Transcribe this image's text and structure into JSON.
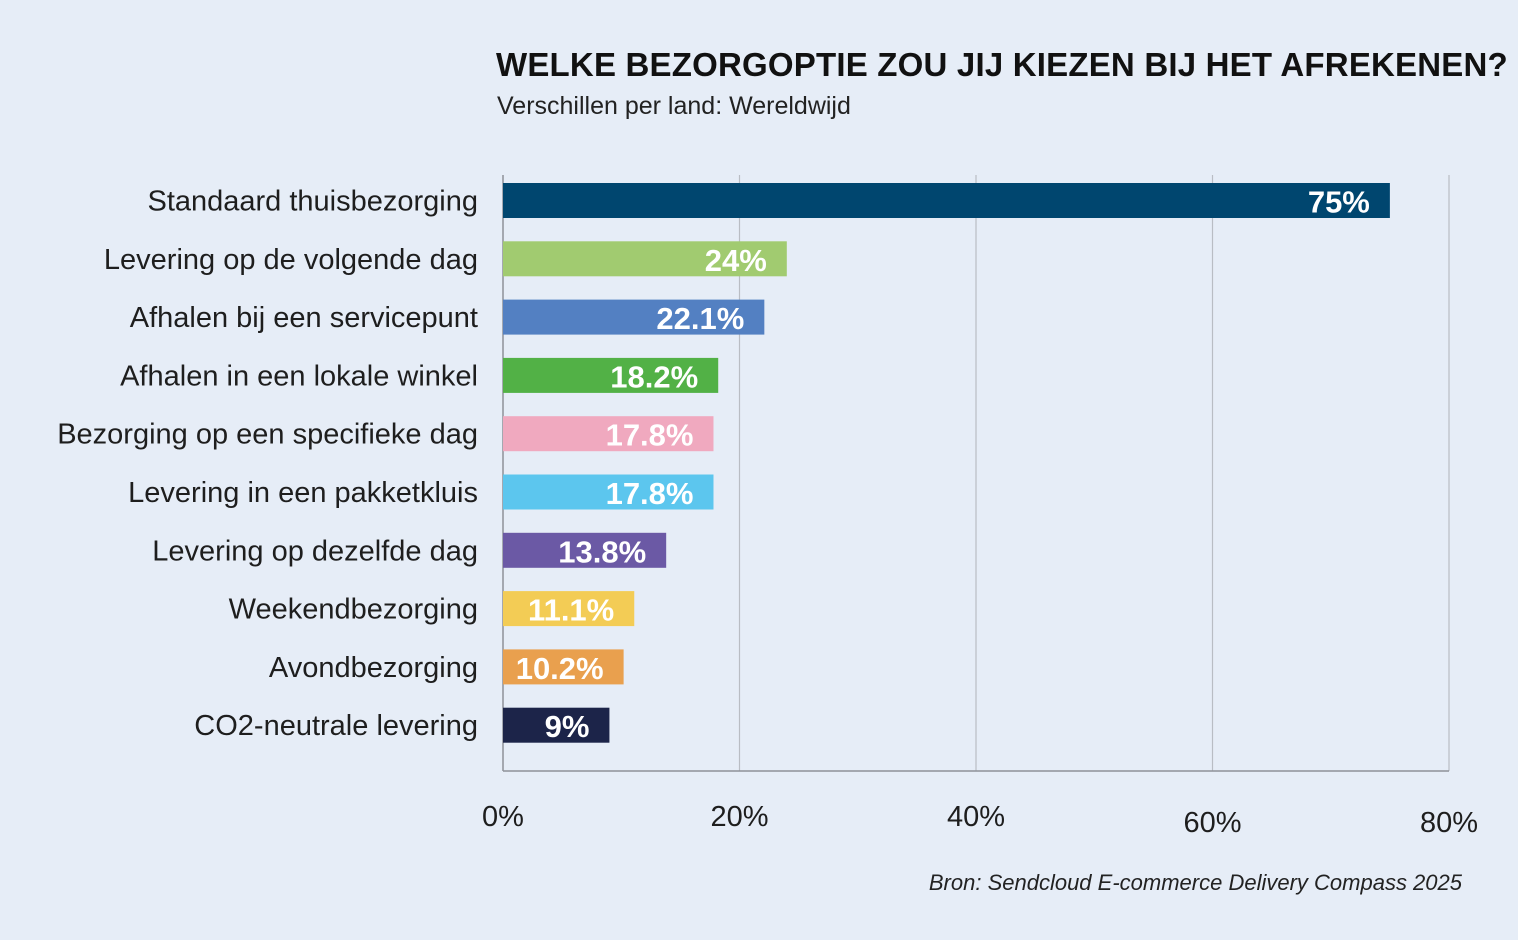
{
  "chart_data": {
    "type": "bar",
    "orientation": "horizontal",
    "title": "WELKE BEZORGOPTIE ZOU JIJ KIEZEN BIJ HET AFREKENEN?",
    "subtitle": "Verschillen per land: Wereldwijd",
    "source": "Bron: Sendcloud E-commerce Delivery Compass 2025",
    "categories": [
      "Standaard thuisbezorging",
      "Levering op de volgende dag",
      "Afhalen bij een servicepunt",
      "Afhalen in een lokale winkel",
      "Bezorging op een specifieke dag",
      "Levering in een pakketkluis",
      "Levering op dezelfde dag",
      "Weekendbezorging",
      "Avondbezorging",
      "CO2-neutrale levering"
    ],
    "values": [
      75,
      24,
      22.1,
      18.2,
      17.8,
      17.8,
      13.8,
      11.1,
      10.2,
      9
    ],
    "value_labels": [
      "75%",
      "24%",
      "22.1%",
      "18.2%",
      "17.8%",
      "17.8%",
      "13.8%",
      "11.1%",
      "10.2%",
      "9%"
    ],
    "colors": [
      "#00466f",
      "#a1cb70",
      "#5380c2",
      "#52b146",
      "#f0a9bf",
      "#5cc6ee",
      "#6b59a5",
      "#f3cc55",
      "#e9a04e",
      "#1c2449"
    ],
    "xlim": [
      0,
      80
    ],
    "xticks": [
      0,
      20,
      40,
      60,
      80
    ],
    "xtick_labels": [
      "0%",
      "20%",
      "40%",
      "60%",
      "80%"
    ],
    "grid": true,
    "background": "#e6edf7"
  }
}
